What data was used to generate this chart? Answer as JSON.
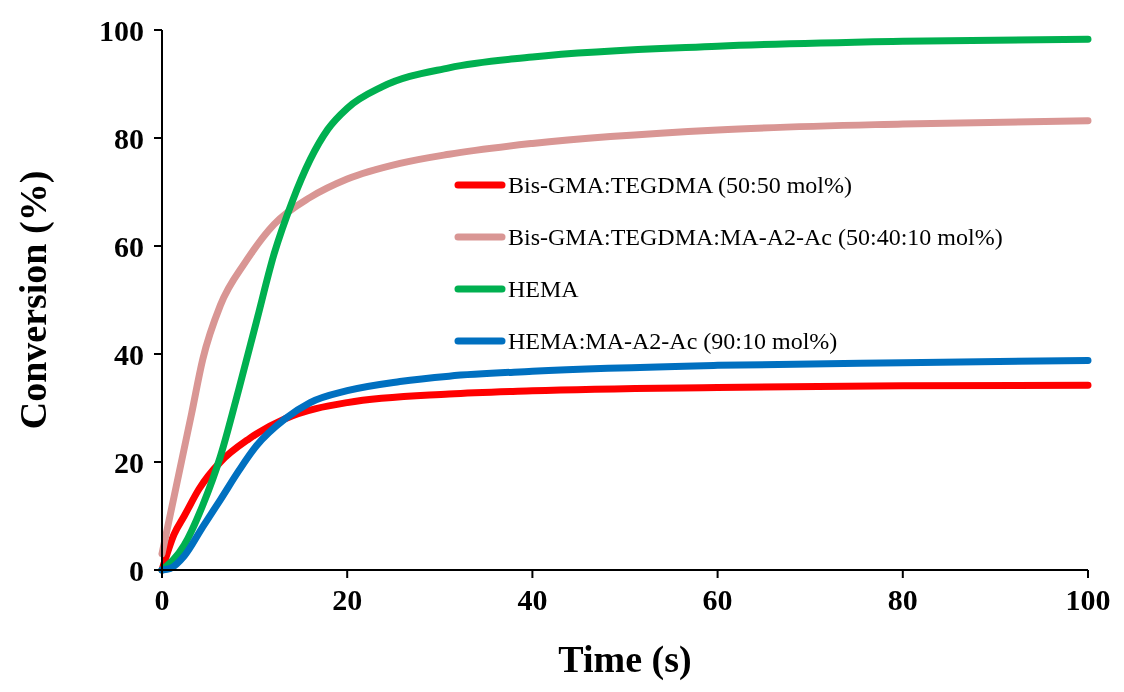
{
  "chart_data": {
    "type": "line",
    "xlabel": "Time (s)",
    "ylabel": "Conversion (%)",
    "xlim": [
      0,
      100
    ],
    "ylim": [
      0,
      100
    ],
    "xticks": [
      0,
      20,
      40,
      60,
      80,
      100
    ],
    "yticks": [
      0,
      20,
      40,
      60,
      80,
      100
    ],
    "grid": false,
    "legend": "right",
    "marker": "none",
    "line_style": "solid",
    "series": [
      {
        "name": "Bis-GMA:TEGDMA (50:50 mol%)",
        "color": "#ff0000",
        "x": [
          0,
          1.3,
          2.4,
          4,
          6.3,
          9.4,
          13.3,
          20,
          31,
          40,
          60,
          80,
          100
        ],
        "values": [
          0,
          6.6,
          10,
          15,
          20,
          24.3,
          28,
          31,
          32.6,
          33.2,
          33.8,
          34.1,
          34.2
        ]
      },
      {
        "name": "Bis-GMA:TEGDMA:MA-A2-Ac (50:40:10 mol%)",
        "color": "#d99694",
        "x": [
          0,
          3.2,
          4.4,
          6.3,
          9,
          12.1,
          16,
          20,
          25.7,
          31,
          40,
          60,
          80,
          100
        ],
        "values": [
          3,
          29,
          39,
          49,
          57,
          64,
          69,
          72.4,
          75.3,
          77,
          79,
          81.5,
          82.6,
          83.2
        ]
      },
      {
        "name": "HEMA",
        "color": "#00b050",
        "x": [
          0,
          2.4,
          4.4,
          6.3,
          8.3,
          10.2,
          12.1,
          14.1,
          16,
          17.9,
          20,
          23.8,
          31,
          40,
          60,
          80,
          100
        ],
        "values": [
          0,
          4.6,
          12,
          21,
          33.5,
          46,
          58.5,
          68.4,
          76,
          81.6,
          85.5,
          89.5,
          93,
          95,
          97,
          97.9,
          98.3
        ]
      },
      {
        "name": "HEMA:MA-A2-Ac (90:10 mol%)",
        "color": "#0070c0",
        "x": [
          0,
          0.9,
          2.4,
          4.4,
          6.3,
          8.3,
          10.2,
          13.3,
          16,
          20,
          25.7,
          31,
          40,
          60,
          80,
          100
        ],
        "values": [
          0,
          0.3,
          2.6,
          8,
          13,
          18.4,
          23,
          28,
          31,
          33.2,
          34.9,
          35.9,
          36.8,
          37.9,
          38.4,
          38.8
        ]
      }
    ]
  }
}
